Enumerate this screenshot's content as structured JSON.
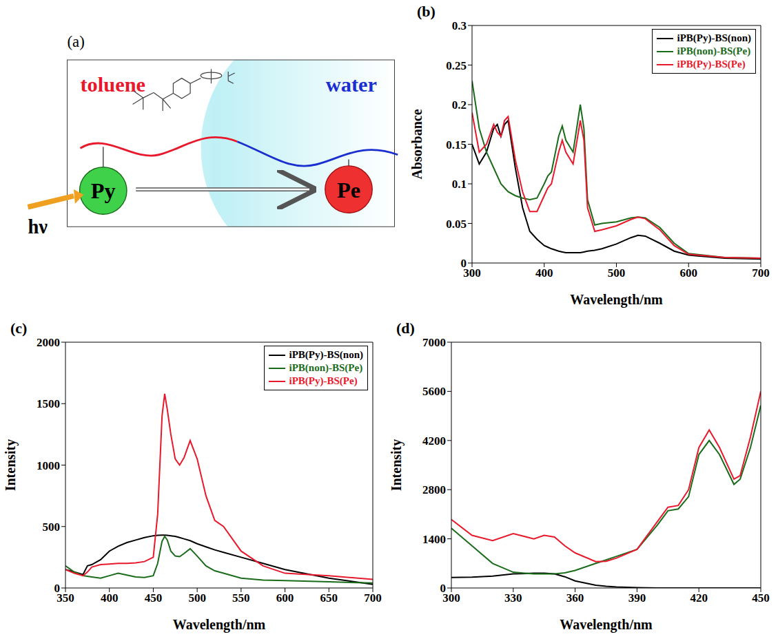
{
  "diagram": {
    "title": "(a)",
    "labels": {
      "left_solvent": "toluene",
      "right_solvent": "water",
      "donor": "Py",
      "acceptor": "Pe",
      "excitation": "hν"
    }
  },
  "chart_data": [
    {
      "type": "line",
      "title": "(b)",
      "xlabel": "Wavelength/nm",
      "ylabel": "Absorbance",
      "legend": "upper right",
      "xlim": [
        300,
        700
      ],
      "xticks": [
        300,
        400,
        500,
        600,
        700
      ],
      "ylim": [
        0,
        0.3
      ],
      "yticks": [
        0,
        0.05,
        0.1,
        0.15,
        0.2,
        0.25,
        0.3
      ],
      "x": [
        300,
        310,
        320,
        330,
        335,
        340,
        345,
        350,
        360,
        370,
        380,
        390,
        400,
        405,
        410,
        420,
        425,
        430,
        440,
        450,
        455,
        460,
        470,
        480,
        500,
        520,
        530,
        540,
        560,
        580,
        600,
        650,
        700
      ],
      "series": [
        {
          "name": "iPB(Py)-BS(non)",
          "color": "#000000",
          "values": [
            0.15,
            0.125,
            0.14,
            0.17,
            0.175,
            0.16,
            0.175,
            0.18,
            0.12,
            0.07,
            0.04,
            0.03,
            0.022,
            0.02,
            0.018,
            0.015,
            0.014,
            0.013,
            0.013,
            0.013,
            0.014,
            0.015,
            0.016,
            0.018,
            0.024,
            0.032,
            0.035,
            0.034,
            0.025,
            0.015,
            0.01,
            0.006,
            0.005
          ]
        },
        {
          "name": "iPB(non)-BS(Pe)",
          "color": "#1a6b1a",
          "values": [
            0.23,
            0.17,
            0.14,
            0.12,
            0.11,
            0.1,
            0.095,
            0.09,
            0.085,
            0.082,
            0.08,
            0.082,
            0.1,
            0.11,
            0.115,
            0.16,
            0.173,
            0.155,
            0.14,
            0.2,
            0.17,
            0.08,
            0.048,
            0.05,
            0.052,
            0.057,
            0.058,
            0.057,
            0.045,
            0.025,
            0.012,
            0.007,
            0.006
          ]
        },
        {
          "name": "iPB(Py)-BS(Pe)",
          "color": "#e8192c",
          "values": [
            0.19,
            0.14,
            0.15,
            0.175,
            0.165,
            0.16,
            0.18,
            0.185,
            0.13,
            0.09,
            0.065,
            0.065,
            0.085,
            0.095,
            0.1,
            0.14,
            0.155,
            0.14,
            0.125,
            0.18,
            0.155,
            0.07,
            0.04,
            0.042,
            0.047,
            0.055,
            0.058,
            0.056,
            0.042,
            0.022,
            0.011,
            0.007,
            0.006
          ]
        }
      ]
    },
    {
      "type": "line",
      "title": "(c)",
      "xlabel": "Wavelength/nm",
      "ylabel": "Intensity",
      "legend": "upper right",
      "xlim": [
        350,
        700
      ],
      "xticks": [
        350,
        400,
        450,
        500,
        550,
        600,
        650,
        700
      ],
      "ylim": [
        0,
        2000
      ],
      "yticks": [
        0,
        500,
        1000,
        1500,
        2000
      ],
      "x": [
        350,
        360,
        370,
        375,
        380,
        390,
        400,
        410,
        420,
        430,
        440,
        450,
        455,
        460,
        463,
        466,
        470,
        475,
        480,
        485,
        492,
        500,
        510,
        520,
        530,
        550,
        575,
        600,
        650,
        700
      ],
      "series": [
        {
          "name": "iPB(Py)-BS(non)",
          "color": "#000000",
          "values": [
            150,
            130,
            110,
            180,
            190,
            230,
            300,
            340,
            370,
            390,
            410,
            425,
            428,
            430,
            430,
            428,
            425,
            420,
            410,
            400,
            385,
            360,
            335,
            310,
            290,
            250,
            200,
            150,
            80,
            30
          ]
        },
        {
          "name": "iPB(non)-BS(Pe)",
          "color": "#1a6b1a",
          "values": [
            180,
            130,
            100,
            95,
            90,
            80,
            100,
            120,
            105,
            90,
            85,
            100,
            200,
            380,
            420,
            390,
            300,
            260,
            255,
            280,
            320,
            260,
            180,
            140,
            120,
            80,
            65,
            60,
            50,
            40
          ]
        },
        {
          "name": "iPB(Py)-BS(Pe)",
          "color": "#e8192c",
          "values": [
            150,
            120,
            100,
            130,
            170,
            190,
            195,
            200,
            200,
            205,
            215,
            250,
            600,
            1400,
            1580,
            1450,
            1250,
            1050,
            1000,
            1060,
            1200,
            1050,
            750,
            550,
            500,
            300,
            180,
            120,
            100,
            70
          ]
        }
      ]
    },
    {
      "type": "line",
      "title": "(d)",
      "xlabel": "Wavelength/nm",
      "ylabel": "Intensity",
      "xlim": [
        300,
        450
      ],
      "xticks": [
        300,
        330,
        360,
        390,
        420,
        450
      ],
      "ylim": [
        0,
        7000
      ],
      "yticks": [
        0,
        1400,
        2800,
        4200,
        5600,
        7000
      ],
      "x": [
        300,
        310,
        320,
        330,
        340,
        345,
        350,
        355,
        360,
        370,
        375,
        380,
        390,
        400,
        405,
        410,
        415,
        420,
        425,
        430,
        437,
        440,
        445,
        450
      ],
      "series": [
        {
          "name": "iPB(Py)-BS(non)",
          "color": "#000000",
          "values": [
            300,
            310,
            340,
            400,
            420,
            420,
            400,
            320,
            200,
            80,
            50,
            30,
            10,
            0,
            0,
            0,
            0,
            0,
            0,
            0,
            0,
            0,
            0,
            0
          ]
        },
        {
          "name": "iPB(non)-BS(Pe)",
          "color": "#1a6b1a",
          "values": [
            1700,
            1200,
            700,
            450,
            400,
            400,
            400,
            430,
            500,
            700,
            800,
            900,
            1100,
            1800,
            2200,
            2250,
            2600,
            3800,
            4200,
            3800,
            2950,
            3100,
            4000,
            5200
          ]
        },
        {
          "name": "iPB(Py)-BS(Pe)",
          "color": "#e8192c",
          "values": [
            1950,
            1500,
            1350,
            1550,
            1400,
            1500,
            1450,
            1200,
            1000,
            750,
            760,
            850,
            1100,
            1900,
            2300,
            2350,
            2800,
            4000,
            4500,
            4000,
            3100,
            3200,
            4300,
            5600
          ]
        }
      ]
    }
  ]
}
